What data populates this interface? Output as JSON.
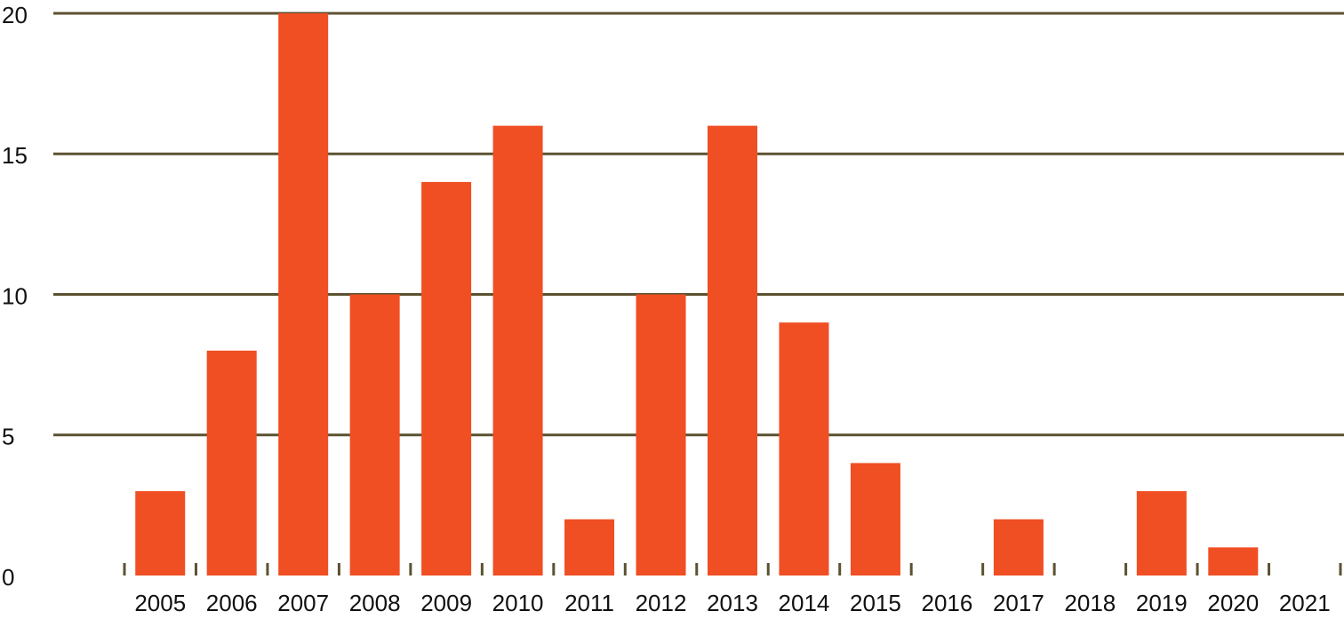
{
  "chart_data": {
    "type": "bar",
    "categories": [
      "2005",
      "2006",
      "2007",
      "2008",
      "2009",
      "2010",
      "2011",
      "2012",
      "2013",
      "2014",
      "2015",
      "2016",
      "2017",
      "2018",
      "2019",
      "2020",
      "2021"
    ],
    "values": [
      3,
      8,
      20,
      10,
      14,
      16,
      2,
      10,
      16,
      9,
      4,
      0,
      2,
      0,
      3,
      1,
      0
    ],
    "color": "#f04e23",
    "grid_color": "#5c5230",
    "ylim": [
      0,
      20
    ],
    "yticks": [
      0,
      5,
      10,
      15,
      20
    ],
    "grid": true
  }
}
